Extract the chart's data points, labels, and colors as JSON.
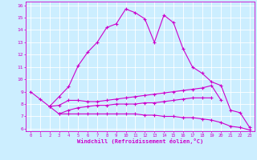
{
  "xlabel": "Windchill (Refroidissement éolien,°C)",
  "bg_color": "#cceeff",
  "line_color": "#cc00cc",
  "grid_color": "#ffffff",
  "xlim": [
    -0.5,
    23.5
  ],
  "ylim": [
    5.8,
    16.3
  ],
  "xticks": [
    0,
    1,
    2,
    3,
    4,
    5,
    6,
    7,
    8,
    9,
    10,
    11,
    12,
    13,
    14,
    15,
    16,
    17,
    18,
    19,
    20,
    21,
    22,
    23
  ],
  "yticks": [
    6,
    7,
    8,
    9,
    10,
    11,
    12,
    13,
    14,
    15,
    16
  ],
  "line1_x": [
    0,
    1,
    2,
    3,
    4,
    5,
    6,
    7,
    8,
    9,
    10,
    11,
    12,
    13,
    14,
    15,
    16,
    17,
    18,
    19,
    20,
    21,
    22,
    23
  ],
  "line1_y": [
    9.0,
    8.4,
    7.8,
    8.6,
    9.4,
    11.1,
    12.2,
    13.0,
    14.2,
    14.5,
    15.7,
    15.4,
    14.9,
    13.0,
    15.2,
    14.6,
    12.5,
    11.0,
    10.5,
    9.8,
    9.5,
    7.5,
    7.3,
    6.1
  ],
  "line2_x": [
    2,
    3,
    4,
    5,
    6,
    7,
    8,
    9,
    10,
    11,
    12,
    13,
    14,
    15,
    16,
    17,
    18,
    19,
    20
  ],
  "line2_y": [
    7.8,
    7.9,
    8.3,
    8.3,
    8.2,
    8.2,
    8.3,
    8.4,
    8.5,
    8.6,
    8.7,
    8.8,
    8.9,
    9.0,
    9.1,
    9.2,
    9.3,
    9.5,
    8.3
  ],
  "line3_x": [
    2,
    3,
    4,
    5,
    6,
    7,
    8,
    9,
    10,
    11,
    12,
    13,
    14,
    15,
    16,
    17,
    18,
    19
  ],
  "line3_y": [
    7.8,
    7.2,
    7.5,
    7.7,
    7.8,
    7.9,
    7.9,
    8.0,
    8.0,
    8.0,
    8.1,
    8.1,
    8.2,
    8.3,
    8.4,
    8.5,
    8.5,
    8.5
  ],
  "line4_x": [
    3,
    4,
    5,
    6,
    7,
    8,
    9,
    10,
    11,
    12,
    13,
    14,
    15,
    16,
    17,
    18,
    19,
    20,
    21,
    22,
    23
  ],
  "line4_y": [
    7.2,
    7.2,
    7.2,
    7.2,
    7.2,
    7.2,
    7.2,
    7.2,
    7.2,
    7.1,
    7.1,
    7.0,
    7.0,
    6.9,
    6.9,
    6.8,
    6.7,
    6.5,
    6.2,
    6.1,
    5.9
  ]
}
